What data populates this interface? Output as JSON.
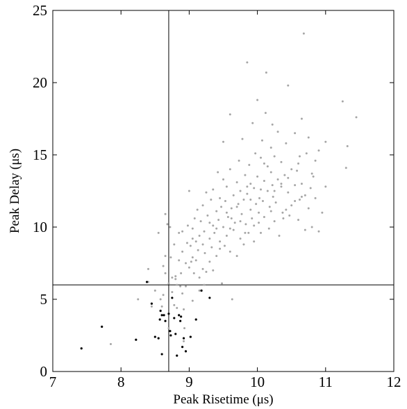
{
  "chart_data": {
    "type": "scatter",
    "title": "",
    "xlabel": "Peak Risetime (μs)",
    "ylabel": "Peak Delay (μs)",
    "xlim": [
      7,
      12
    ],
    "ylim": [
      0,
      25
    ],
    "xticks": [
      7,
      8,
      9,
      10,
      11,
      12
    ],
    "yticks": [
      0,
      5,
      10,
      15,
      20,
      25
    ],
    "grid": false,
    "reference_lines": {
      "vertical_x": 8.7,
      "horizontal_y": 6.0
    },
    "series": [
      {
        "color": "#a6a6a6",
        "points": [
          [
            7.85,
            1.9
          ],
          [
            8.25,
            5.0
          ],
          [
            8.4,
            6.2
          ],
          [
            8.4,
            7.1
          ],
          [
            8.45,
            4.5
          ],
          [
            8.5,
            5.6
          ],
          [
            8.55,
            9.6
          ],
          [
            8.58,
            5.0
          ],
          [
            8.6,
            4.5
          ],
          [
            8.62,
            5.3
          ],
          [
            8.62,
            7.3
          ],
          [
            8.65,
            8.0
          ],
          [
            8.65,
            6.8
          ],
          [
            8.65,
            10.9
          ],
          [
            8.68,
            10.2
          ],
          [
            8.7,
            3.0
          ],
          [
            8.7,
            6.1
          ],
          [
            8.72,
            10.0
          ],
          [
            8.73,
            7.9
          ],
          [
            8.75,
            5.5
          ],
          [
            8.75,
            6.5
          ],
          [
            8.78,
            8.8
          ],
          [
            8.78,
            4.6
          ],
          [
            8.8,
            6.6
          ],
          [
            8.82,
            4.4
          ],
          [
            8.82,
            6.0
          ],
          [
            8.85,
            9.6
          ],
          [
            8.85,
            7.7
          ],
          [
            8.87,
            5.9
          ],
          [
            8.88,
            6.8
          ],
          [
            8.9,
            9.7
          ],
          [
            8.9,
            8.3
          ],
          [
            8.92,
            4.3
          ],
          [
            8.92,
            2.1
          ],
          [
            8.93,
            3.0
          ],
          [
            8.95,
            1.4
          ],
          [
            8.95,
            5.9
          ],
          [
            8.97,
            8.9
          ],
          [
            8.98,
            10.1
          ],
          [
            9.0,
            7.2
          ],
          [
            9.0,
            12.5
          ],
          [
            9.02,
            8.7
          ],
          [
            9.03,
            7.6
          ],
          [
            9.05,
            9.9
          ],
          [
            9.05,
            4.9
          ],
          [
            9.07,
            6.8
          ],
          [
            9.08,
            10.6
          ],
          [
            9.1,
            7.7
          ],
          [
            9.1,
            9.0
          ],
          [
            9.12,
            11.2
          ],
          [
            9.13,
            8.4
          ],
          [
            9.15,
            6.5
          ],
          [
            9.15,
            9.4
          ],
          [
            9.17,
            10.4
          ],
          [
            9.2,
            7.1
          ],
          [
            9.2,
            11.5
          ],
          [
            9.22,
            9.7
          ],
          [
            9.23,
            8.2
          ],
          [
            9.25,
            6.9
          ],
          [
            9.25,
            12.4
          ],
          [
            9.27,
            10.8
          ],
          [
            9.3,
            9.2
          ],
          [
            9.3,
            7.6
          ],
          [
            9.32,
            11.9
          ],
          [
            9.33,
            8.6
          ],
          [
            9.35,
            10.1
          ],
          [
            9.35,
            12.6
          ],
          [
            9.37,
            9.6
          ],
          [
            9.4,
            11.1
          ],
          [
            9.4,
            8.0
          ],
          [
            9.42,
            13.8
          ],
          [
            9.43,
            10.5
          ],
          [
            9.45,
            9.0
          ],
          [
            9.45,
            12.0
          ],
          [
            9.47,
            11.4
          ],
          [
            9.48,
            6.1
          ],
          [
            9.5,
            10.0
          ],
          [
            9.5,
            13.3
          ],
          [
            9.5,
            15.9
          ],
          [
            9.52,
            8.7
          ],
          [
            9.53,
            11.8
          ],
          [
            9.55,
            9.4
          ],
          [
            9.55,
            12.8
          ],
          [
            9.57,
            10.7
          ],
          [
            9.6,
            14.0
          ],
          [
            9.6,
            8.3
          ],
          [
            9.6,
            17.8
          ],
          [
            9.62,
            11.3
          ],
          [
            9.63,
            5.0
          ],
          [
            9.65,
            9.8
          ],
          [
            9.65,
            12.2
          ],
          [
            9.67,
            10.3
          ],
          [
            9.7,
            13.1
          ],
          [
            9.7,
            8.0
          ],
          [
            9.72,
            11.6
          ],
          [
            9.73,
            14.6
          ],
          [
            9.75,
            9.2
          ],
          [
            9.75,
            12.5
          ],
          [
            9.77,
            10.9
          ],
          [
            9.78,
            16.1
          ],
          [
            9.8,
            11.9
          ],
          [
            9.8,
            8.8
          ],
          [
            9.82,
            13.6
          ],
          [
            9.83,
            10.2
          ],
          [
            9.85,
            21.4
          ],
          [
            9.85,
            12.3
          ],
          [
            9.87,
            9.6
          ],
          [
            9.88,
            14.3
          ],
          [
            9.9,
            11.2
          ],
          [
            9.9,
            13.0
          ],
          [
            9.92,
            10.6
          ],
          [
            9.93,
            17.2
          ],
          [
            9.95,
            12.7
          ],
          [
            9.95,
            9.0
          ],
          [
            9.97,
            15.1
          ],
          [
            9.98,
            11.6
          ],
          [
            10.0,
            13.5
          ],
          [
            10.0,
            18.8
          ],
          [
            10.02,
            10.3
          ],
          [
            10.03,
            12.0
          ],
          [
            10.05,
            14.8
          ],
          [
            10.05,
            9.6
          ],
          [
            10.07,
            16.0
          ],
          [
            10.08,
            11.8
          ],
          [
            10.1,
            13.2
          ],
          [
            10.1,
            10.7
          ],
          [
            10.12,
            17.9
          ],
          [
            10.13,
            20.7
          ],
          [
            10.15,
            12.5
          ],
          [
            10.15,
            14.2
          ],
          [
            10.17,
            9.9
          ],
          [
            10.18,
            11.4
          ],
          [
            10.2,
            15.5
          ],
          [
            10.2,
            13.8
          ],
          [
            10.22,
            17.1
          ],
          [
            10.23,
            12.1
          ],
          [
            10.25,
            10.4
          ],
          [
            10.25,
            14.9
          ],
          [
            10.27,
            11.7
          ],
          [
            10.3,
            13.3
          ],
          [
            10.3,
            16.6
          ],
          [
            10.32,
            9.4
          ],
          [
            10.35,
            12.8
          ],
          [
            10.35,
            14.5
          ],
          [
            10.37,
            11.0
          ],
          [
            10.4,
            13.6
          ],
          [
            10.42,
            15.8
          ],
          [
            10.45,
            12.4
          ],
          [
            10.45,
            19.8
          ],
          [
            10.47,
            10.8
          ],
          [
            10.5,
            14.0
          ],
          [
            10.5,
            11.5
          ],
          [
            10.55,
            12.9
          ],
          [
            10.55,
            16.5
          ],
          [
            10.6,
            10.5
          ],
          [
            10.6,
            14.4
          ],
          [
            10.62,
            11.9
          ],
          [
            10.65,
            17.5
          ],
          [
            10.65,
            13.0
          ],
          [
            10.68,
            23.4
          ],
          [
            10.7,
            12.2
          ],
          [
            10.7,
            9.8
          ],
          [
            10.72,
            15.1
          ],
          [
            10.75,
            11.3
          ],
          [
            10.75,
            16.2
          ],
          [
            10.8,
            13.7
          ],
          [
            10.8,
            10.0
          ],
          [
            10.85,
            14.6
          ],
          [
            10.85,
            12.0
          ],
          [
            10.9,
            9.7
          ],
          [
            10.9,
            15.3
          ],
          [
            10.95,
            11.0
          ],
          [
            11.0,
            15.9
          ],
          [
            11.0,
            12.8
          ],
          [
            11.25,
            18.7
          ],
          [
            11.3,
            14.1
          ],
          [
            11.32,
            15.6
          ],
          [
            11.45,
            17.6
          ],
          [
            8.8,
            6.4
          ],
          [
            8.9,
            5.4
          ],
          [
            9.15,
            5.6
          ],
          [
            9.05,
            7.9
          ],
          [
            9.22,
            6.0
          ],
          [
            9.35,
            7.0
          ],
          [
            9.45,
            8.5
          ],
          [
            9.6,
            9.9
          ],
          [
            9.75,
            10.4
          ],
          [
            9.9,
            11.9
          ],
          [
            10.05,
            12.6
          ],
          [
            10.2,
            11.1
          ],
          [
            10.35,
            13.0
          ],
          [
            10.55,
            11.8
          ],
          [
            9.85,
            12.8
          ],
          [
            10.25,
            12.5
          ],
          [
            9.55,
            11.0
          ],
          [
            10.65,
            12.1
          ],
          [
            10.45,
            13.4
          ],
          [
            10.1,
            14.4
          ],
          [
            9.95,
            10.1
          ],
          [
            9.7,
            11.4
          ],
          [
            10.38,
            10.6
          ],
          [
            10.58,
            13.9
          ],
          [
            10.78,
            12.7
          ],
          [
            9.3,
            10.3
          ],
          [
            9.05,
            9.2
          ],
          [
            8.95,
            7.5
          ],
          [
            9.2,
            8.8
          ],
          [
            9.4,
            9.9
          ],
          [
            9.62,
            10.6
          ],
          [
            9.82,
            9.6
          ],
          [
            10.02,
            11.0
          ],
          [
            10.22,
            12.9
          ],
          [
            10.42,
            11.2
          ],
          [
            10.62,
            14.9
          ],
          [
            10.82,
            13.5
          ]
        ]
      },
      {
        "color": "#000000",
        "points": [
          [
            7.42,
            1.6
          ],
          [
            7.72,
            3.1
          ],
          [
            8.22,
            2.2
          ],
          [
            8.38,
            6.2
          ],
          [
            8.45,
            4.7
          ],
          [
            8.5,
            2.4
          ],
          [
            8.55,
            2.3
          ],
          [
            8.57,
            3.6
          ],
          [
            8.58,
            4.2
          ],
          [
            8.6,
            1.2
          ],
          [
            8.63,
            3.9
          ],
          [
            8.65,
            3.5
          ],
          [
            8.7,
            4.0
          ],
          [
            8.72,
            2.8
          ],
          [
            8.73,
            2.5
          ],
          [
            8.75,
            5.1
          ],
          [
            8.78,
            3.7
          ],
          [
            8.82,
            1.1
          ],
          [
            8.85,
            3.9
          ],
          [
            8.87,
            3.5
          ],
          [
            8.88,
            3.8
          ],
          [
            8.9,
            1.7
          ],
          [
            8.92,
            2.3
          ],
          [
            8.95,
            1.4
          ],
          [
            9.02,
            2.4
          ],
          [
            9.1,
            3.6
          ],
          [
            9.18,
            5.6
          ],
          [
            9.3,
            5.1
          ],
          [
            8.6,
            3.9
          ],
          [
            8.8,
            2.6
          ]
        ]
      }
    ]
  }
}
